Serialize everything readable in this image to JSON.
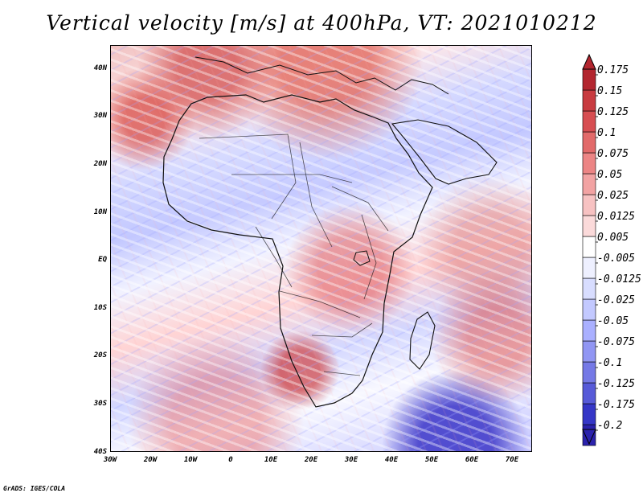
{
  "map": {
    "title": "Vertical velocity [m/s] at 400hPa, VT: 2021010212",
    "latitude_labels": [
      "40N",
      "30N",
      "20N",
      "10N",
      "EQ",
      "10S",
      "20S",
      "30S",
      "40S"
    ],
    "longitude_labels": [
      "30W",
      "20W",
      "10W",
      "0",
      "10E",
      "20E",
      "30E",
      "40E",
      "50E",
      "60E",
      "70E"
    ]
  },
  "colorbar": {
    "labels": [
      "0.175",
      "0.15",
      "0.125",
      "0.1",
      "0.075",
      "0.05",
      "0.025",
      "0.0125",
      "0.005",
      "-0.005",
      "-0.0125",
      "-0.025",
      "-0.05",
      "-0.075",
      "-0.1",
      "-0.125",
      "-0.175",
      "-0.2"
    ],
    "colors": [
      "#b3262f",
      "#c83b40",
      "#d74e52",
      "#e26a6a",
      "#ec8585",
      "#f2a3a3",
      "#f7c2c2",
      "#fbdada",
      "#ffffff",
      "#eef0ff",
      "#d8ddff",
      "#c3c9ff",
      "#aab0ff",
      "#9196f3",
      "#7579e6",
      "#575ad8",
      "#3536c7",
      "#2b22ad"
    ]
  },
  "footer": {
    "credit": "GrADS: IGES/COLA"
  }
}
